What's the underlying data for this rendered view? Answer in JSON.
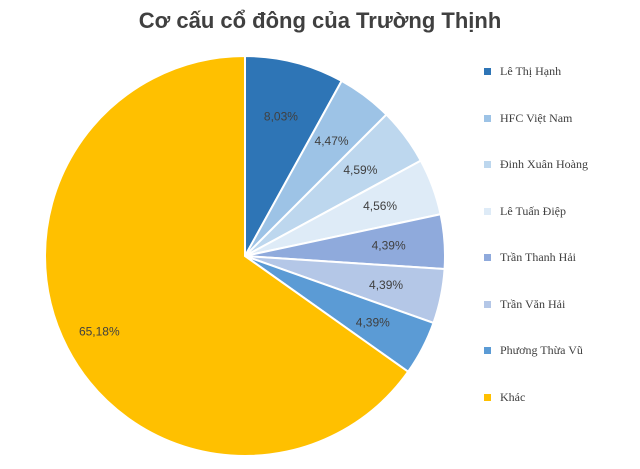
{
  "chart_data": {
    "type": "pie",
    "title": "Cơ cấu cổ đông của Trường Thịnh",
    "legend_position": "right",
    "slices": [
      {
        "name": "Lê Thị Hạnh",
        "value": 8.03,
        "label": "8,03%",
        "color": "#2e75b6"
      },
      {
        "name": "HFC Việt Nam",
        "value": 4.47,
        "label": "4,47%",
        "color": "#9dc3e6"
      },
      {
        "name": "Đinh Xuân Hoàng",
        "value": 4.59,
        "label": "4,59%",
        "color": "#bdd7ee"
      },
      {
        "name": "Lê Tuấn Điệp",
        "value": 4.56,
        "label": "4,56%",
        "color": "#deebf7"
      },
      {
        "name": "Trần Thanh Hải",
        "value": 4.39,
        "label": "4,39%",
        "color": "#8faadc"
      },
      {
        "name": "Trần Văn Hải",
        "value": 4.39,
        "label": "4,39%",
        "color": "#b4c7e7"
      },
      {
        "name": "Phương Thừa Vũ",
        "value": 4.39,
        "label": "4,39%",
        "color": "#5b9bd5"
      },
      {
        "name": "Khác",
        "value": 65.18,
        "label": "65,18%",
        "color": "#ffc000"
      }
    ]
  }
}
